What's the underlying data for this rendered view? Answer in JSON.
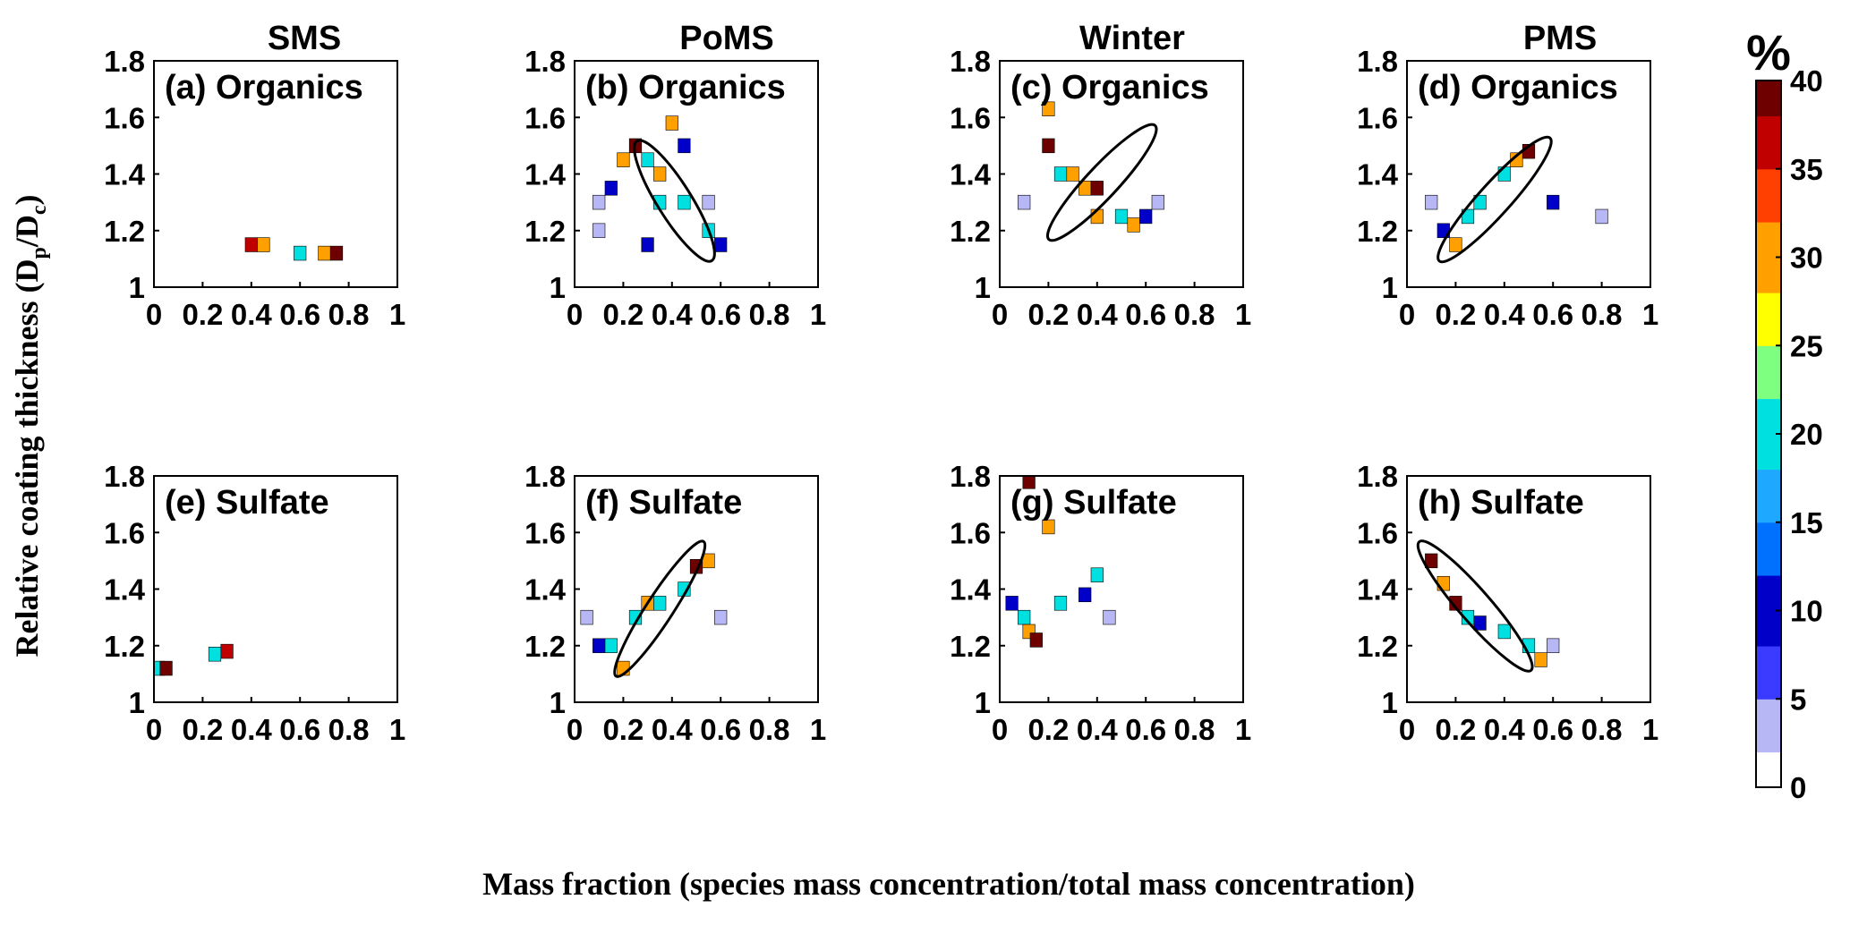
{
  "columns": [
    "SMS",
    "PoMS",
    "Winter",
    "PMS"
  ],
  "y_label_main": "Relative coating thickness (D",
  "y_label_sub1": "p",
  "y_label_mid": "/D",
  "y_label_sub2": "c",
  "y_label_end": ")",
  "x_label": "Mass fraction (species mass concentration/total mass concentration)",
  "colorbar": {
    "unit": "%",
    "ticks": [
      "0",
      "5",
      "10",
      "15",
      "20",
      "25",
      "30",
      "35",
      "40"
    ],
    "range": [
      0,
      40
    ],
    "colormap": [
      "#ffffff",
      "#b7b7f5",
      "#3b3bff",
      "#0000c8",
      "#0070ff",
      "#1ea8ff",
      "#00e0e0",
      "#7fff7f",
      "#ffff00",
      "#ffa000",
      "#ff4000",
      "#c00000",
      "#6e0000"
    ]
  },
  "chart_data": [
    {
      "type": "heatmap",
      "panel": "(a) Organics",
      "column": "SMS",
      "xlim": [
        0,
        1
      ],
      "ylim": [
        1,
        1.8
      ],
      "x_ticks": [
        "0",
        "0.2",
        "0.4",
        "0.6",
        "0.8",
        "1"
      ],
      "y_ticks": [
        "1",
        "1.2",
        "1.4",
        "1.6",
        "1.8"
      ],
      "cells": [
        {
          "x": 0.4,
          "y": 1.15,
          "v": 38
        },
        {
          "x": 0.45,
          "y": 1.15,
          "v": 30
        },
        {
          "x": 0.6,
          "y": 1.12,
          "v": 20
        },
        {
          "x": 0.7,
          "y": 1.12,
          "v": 30
        },
        {
          "x": 0.75,
          "y": 1.12,
          "v": 40
        }
      ]
    },
    {
      "type": "heatmap",
      "panel": "(b) Organics",
      "column": "PoMS",
      "xlim": [
        0,
        1
      ],
      "ylim": [
        1,
        1.8
      ],
      "x_ticks": [
        "0",
        "0.2",
        "0.4",
        "0.6",
        "0.8",
        "1"
      ],
      "y_ticks": [
        "1",
        "1.2",
        "1.4",
        "1.6",
        "1.8"
      ],
      "ellipse": {
        "cx": 0.41,
        "cy": 1.305,
        "rx": 0.29,
        "ry": 0.07,
        "angle_deg": 58
      },
      "cells": [
        {
          "x": 0.1,
          "y": 1.3,
          "v": 3
        },
        {
          "x": 0.1,
          "y": 1.2,
          "v": 3
        },
        {
          "x": 0.15,
          "y": 1.35,
          "v": 10
        },
        {
          "x": 0.2,
          "y": 1.45,
          "v": 30
        },
        {
          "x": 0.25,
          "y": 1.5,
          "v": 40
        },
        {
          "x": 0.3,
          "y": 1.45,
          "v": 20
        },
        {
          "x": 0.35,
          "y": 1.4,
          "v": 30
        },
        {
          "x": 0.35,
          "y": 1.3,
          "v": 20
        },
        {
          "x": 0.45,
          "y": 1.3,
          "v": 20
        },
        {
          "x": 0.55,
          "y": 1.2,
          "v": 20
        },
        {
          "x": 0.6,
          "y": 1.15,
          "v": 10
        },
        {
          "x": 0.3,
          "y": 1.15,
          "v": 10
        },
        {
          "x": 0.45,
          "y": 1.5,
          "v": 10
        },
        {
          "x": 0.55,
          "y": 1.3,
          "v": 3
        },
        {
          "x": 0.4,
          "y": 1.58,
          "v": 30
        }
      ]
    },
    {
      "type": "heatmap",
      "panel": "(c) Organics",
      "column": "Winter",
      "xlim": [
        0,
        1
      ],
      "ylim": [
        1,
        1.8
      ],
      "x_ticks": [
        "0",
        "0.2",
        "0.4",
        "0.6",
        "0.8",
        "1"
      ],
      "y_ticks": [
        "1",
        "1.2",
        "1.4",
        "1.6",
        "1.8"
      ],
      "ellipse": {
        "cx": 0.42,
        "cy": 1.37,
        "rx": 0.32,
        "ry": 0.065,
        "angle_deg": -47
      },
      "cells": [
        {
          "x": 0.1,
          "y": 1.3,
          "v": 3
        },
        {
          "x": 0.2,
          "y": 1.5,
          "v": 40
        },
        {
          "x": 0.25,
          "y": 1.4,
          "v": 20
        },
        {
          "x": 0.3,
          "y": 1.4,
          "v": 30
        },
        {
          "x": 0.35,
          "y": 1.35,
          "v": 30
        },
        {
          "x": 0.4,
          "y": 1.35,
          "v": 40
        },
        {
          "x": 0.4,
          "y": 1.25,
          "v": 30
        },
        {
          "x": 0.5,
          "y": 1.25,
          "v": 20
        },
        {
          "x": 0.55,
          "y": 1.22,
          "v": 30
        },
        {
          "x": 0.6,
          "y": 1.25,
          "v": 10
        },
        {
          "x": 0.65,
          "y": 1.3,
          "v": 3
        },
        {
          "x": 0.2,
          "y": 1.63,
          "v": 30
        }
      ]
    },
    {
      "type": "heatmap",
      "panel": "(d) Organics",
      "column": "PMS",
      "xlim": [
        0,
        1
      ],
      "ylim": [
        1,
        1.8
      ],
      "x_ticks": [
        "0",
        "0.2",
        "0.4",
        "0.6",
        "0.8",
        "1"
      ],
      "y_ticks": [
        "1",
        "1.2",
        "1.4",
        "1.6",
        "1.8"
      ],
      "ellipse": {
        "cx": 0.36,
        "cy": 1.31,
        "rx": 0.34,
        "ry": 0.065,
        "angle_deg": -48
      },
      "cells": [
        {
          "x": 0.1,
          "y": 1.3,
          "v": 3
        },
        {
          "x": 0.15,
          "y": 1.2,
          "v": 10
        },
        {
          "x": 0.2,
          "y": 1.15,
          "v": 30
        },
        {
          "x": 0.25,
          "y": 1.25,
          "v": 20
        },
        {
          "x": 0.3,
          "y": 1.3,
          "v": 20
        },
        {
          "x": 0.4,
          "y": 1.4,
          "v": 20
        },
        {
          "x": 0.45,
          "y": 1.45,
          "v": 30
        },
        {
          "x": 0.5,
          "y": 1.48,
          "v": 40
        },
        {
          "x": 0.6,
          "y": 1.3,
          "v": 10
        },
        {
          "x": 0.8,
          "y": 1.25,
          "v": 3
        }
      ]
    },
    {
      "type": "heatmap",
      "panel": "(e) Sulfate",
      "column": "SMS",
      "xlim": [
        0,
        1
      ],
      "ylim": [
        1,
        1.8
      ],
      "x_ticks": [
        "0",
        "0.2",
        "0.4",
        "0.6",
        "0.8",
        "1"
      ],
      "y_ticks": [
        "1",
        "1.2",
        "1.4",
        "1.6",
        "1.8"
      ],
      "cells": [
        {
          "x": 0.02,
          "y": 1.12,
          "v": 20
        },
        {
          "x": 0.05,
          "y": 1.12,
          "v": 40
        },
        {
          "x": 0.25,
          "y": 1.17,
          "v": 20
        },
        {
          "x": 0.3,
          "y": 1.18,
          "v": 35
        }
      ]
    },
    {
      "type": "heatmap",
      "panel": "(f) Sulfate",
      "column": "PoMS",
      "xlim": [
        0,
        1
      ],
      "ylim": [
        1,
        1.8
      ],
      "x_ticks": [
        "0",
        "0.2",
        "0.4",
        "0.6",
        "0.8",
        "1"
      ],
      "y_ticks": [
        "1",
        "1.2",
        "1.4",
        "1.6",
        "1.8"
      ],
      "ellipse": {
        "cx": 0.35,
        "cy": 1.33,
        "rx": 0.33,
        "ry": 0.055,
        "angle_deg": -57
      },
      "cells": [
        {
          "x": 0.05,
          "y": 1.3,
          "v": 3
        },
        {
          "x": 0.1,
          "y": 1.2,
          "v": 10
        },
        {
          "x": 0.15,
          "y": 1.2,
          "v": 20
        },
        {
          "x": 0.25,
          "y": 1.3,
          "v": 20
        },
        {
          "x": 0.3,
          "y": 1.35,
          "v": 30
        },
        {
          "x": 0.35,
          "y": 1.35,
          "v": 20
        },
        {
          "x": 0.45,
          "y": 1.4,
          "v": 20
        },
        {
          "x": 0.5,
          "y": 1.48,
          "v": 40
        },
        {
          "x": 0.55,
          "y": 1.5,
          "v": 30
        },
        {
          "x": 0.2,
          "y": 1.12,
          "v": 30
        },
        {
          "x": 0.6,
          "y": 1.3,
          "v": 3
        }
      ]
    },
    {
      "type": "heatmap",
      "panel": "(g) Sulfate",
      "column": "Winter",
      "xlim": [
        0,
        1
      ],
      "ylim": [
        1,
        1.8
      ],
      "x_ticks": [
        "0",
        "0.2",
        "0.4",
        "0.6",
        "0.8",
        "1"
      ],
      "y_ticks": [
        "1",
        "1.2",
        "1.4",
        "1.6",
        "1.8"
      ],
      "cells": [
        {
          "x": 0.05,
          "y": 1.35,
          "v": 10
        },
        {
          "x": 0.1,
          "y": 1.3,
          "v": 20
        },
        {
          "x": 0.12,
          "y": 1.25,
          "v": 30
        },
        {
          "x": 0.15,
          "y": 1.22,
          "v": 40
        },
        {
          "x": 0.25,
          "y": 1.35,
          "v": 20
        },
        {
          "x": 0.35,
          "y": 1.38,
          "v": 10
        },
        {
          "x": 0.4,
          "y": 1.45,
          "v": 20
        },
        {
          "x": 0.45,
          "y": 1.3,
          "v": 3
        },
        {
          "x": 0.2,
          "y": 1.62,
          "v": 30
        },
        {
          "x": 0.12,
          "y": 1.78,
          "v": 40
        }
      ]
    },
    {
      "type": "heatmap",
      "panel": "(h) Sulfate",
      "column": "PMS",
      "xlim": [
        0,
        1
      ],
      "ylim": [
        1,
        1.8
      ],
      "x_ticks": [
        "0",
        "0.2",
        "0.4",
        "0.6",
        "0.8",
        "1"
      ],
      "y_ticks": [
        "1",
        "1.2",
        "1.4",
        "1.6",
        "1.8"
      ],
      "ellipse": {
        "cx": 0.28,
        "cy": 1.34,
        "rx": 0.35,
        "ry": 0.065,
        "angle_deg": 49
      },
      "cells": [
        {
          "x": 0.1,
          "y": 1.5,
          "v": 40
        },
        {
          "x": 0.15,
          "y": 1.42,
          "v": 30
        },
        {
          "x": 0.2,
          "y": 1.35,
          "v": 40
        },
        {
          "x": 0.25,
          "y": 1.3,
          "v": 20
        },
        {
          "x": 0.3,
          "y": 1.28,
          "v": 10
        },
        {
          "x": 0.4,
          "y": 1.25,
          "v": 20
        },
        {
          "x": 0.5,
          "y": 1.2,
          "v": 20
        },
        {
          "x": 0.55,
          "y": 1.15,
          "v": 30
        },
        {
          "x": 0.6,
          "y": 1.2,
          "v": 3
        }
      ]
    }
  ]
}
